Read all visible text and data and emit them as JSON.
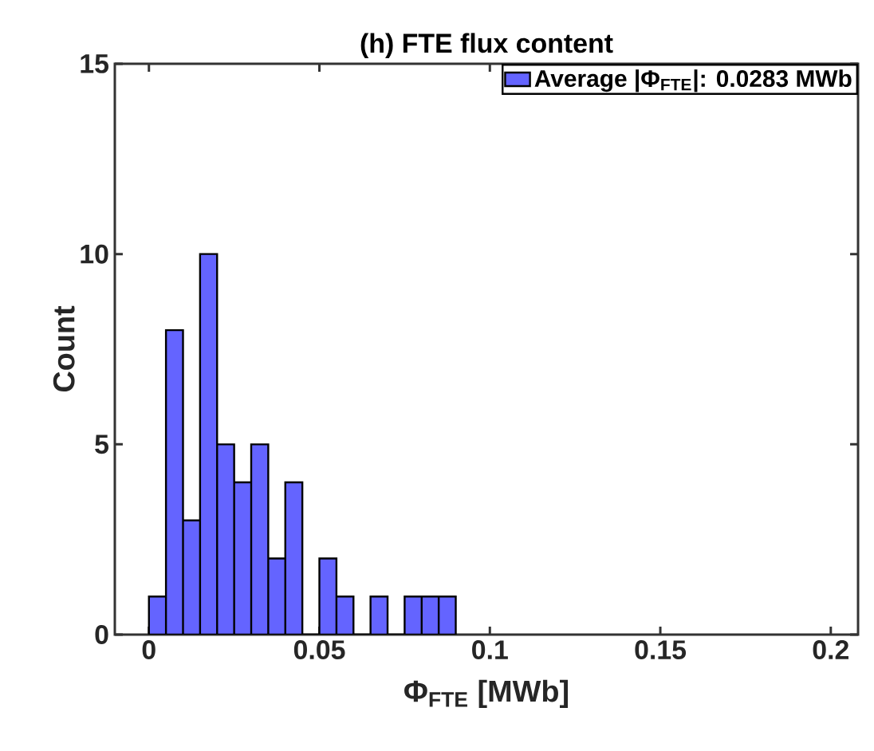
{
  "chart_data": {
    "type": "histogram",
    "title": "(h) FTE flux content",
    "xlabel": "Φ$_{FTE}$ [MWb]",
    "ylabel": "Count",
    "bins": [
      0,
      0.005,
      0.01,
      0.015,
      0.02,
      0.025,
      0.03,
      0.035,
      0.04,
      0.045,
      0.05,
      0.055,
      0.06,
      0.065,
      0.07,
      0.075,
      0.08,
      0.085,
      0.09
    ],
    "series": [
      {
        "name": "Average |Φ$_{FTE}$|: 0.0283 MWb",
        "color": "#6464ff",
        "values": [
          1,
          8,
          3,
          10,
          5,
          4,
          5,
          2,
          4,
          0,
          2,
          1,
          0,
          1,
          0,
          1,
          1,
          1
        ]
      }
    ],
    "xlim": [
      -0.01,
      0.208
    ],
    "ylim": [
      0,
      15
    ],
    "xticks": [
      0,
      0.05,
      0.1,
      0.15,
      0.2
    ],
    "yticks": [
      0,
      5,
      10,
      15
    ],
    "legend": "top right",
    "grid": false
  }
}
